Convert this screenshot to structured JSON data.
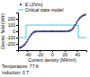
{
  "chart_data": {
    "type": "scatter",
    "xlabel": "Current density (MA/m²)",
    "ylabel": "Electric field (V/m)",
    "xlim": [
      -55,
      55
    ],
    "ylim": [
      -300,
      300
    ],
    "xticks": [
      -40,
      -20,
      0,
      20,
      40
    ],
    "yticks": [
      -200,
      -100,
      0,
      100,
      200
    ],
    "grid": false,
    "legend": "top",
    "annotations": [
      "Temperature: 77 K",
      "Induction: 0 T"
    ],
    "series": [
      {
        "name": "E (J/Vm)",
        "type": "scatter",
        "marker": "square",
        "color": "#404080",
        "x": [
          -53,
          -51,
          -49,
          -47,
          -45,
          -43,
          -41,
          -39,
          -37,
          -35,
          -33,
          -31,
          -29,
          -27,
          -25,
          -22,
          -19,
          -16,
          -13,
          -10,
          -7,
          -4,
          -2,
          0,
          2,
          4,
          7,
          10,
          13,
          16,
          19,
          22,
          25,
          27,
          29,
          31,
          33,
          35,
          37,
          39,
          41,
          43,
          45,
          47,
          49,
          51,
          53
        ],
        "values": [
          -265,
          -258,
          -248,
          -235,
          -218,
          -196,
          -168,
          -135,
          -100,
          -70,
          -44,
          -22,
          -10,
          -5,
          -2,
          -1,
          -0.5,
          -0.3,
          -0.15,
          -0.08,
          -0.04,
          -0.01,
          -0.005,
          0,
          0.005,
          0.01,
          0.04,
          0.08,
          0.15,
          0.3,
          0.5,
          1,
          2,
          5,
          10,
          22,
          44,
          70,
          100,
          135,
          168,
          196,
          218,
          235,
          248,
          258,
          265
        ]
      },
      {
        "name": "Critical state model",
        "type": "line",
        "color": "#40c8e0",
        "x": [
          -55,
          -42,
          -42,
          42,
          42,
          55
        ],
        "values": [
          -100,
          -100,
          100,
          100,
          -100,
          -100
        ]
      }
    ]
  }
}
